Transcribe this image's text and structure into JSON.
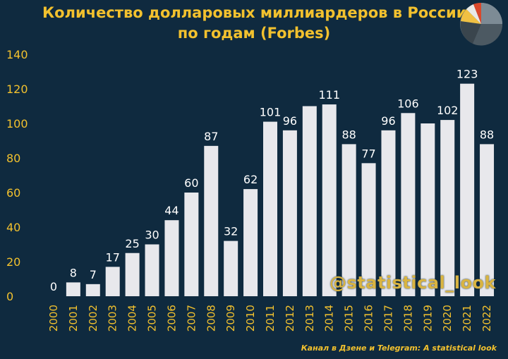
{
  "title_line1": "Количество долларовых миллиардеров в России",
  "title_line2": "по годам (Forbes)",
  "watermark": "@statistical_look",
  "footer": "Канал в Дзене и Telegram: A statistical look",
  "colors": {
    "background": "#0f2a3f",
    "bar": "#e8e8ec",
    "title": "#f2c12e",
    "axis_text": "#f2c12e",
    "label_text": "#ffffff"
  },
  "chart_data": {
    "type": "bar",
    "categories": [
      "2000",
      "2001",
      "2002",
      "2003",
      "2004",
      "2005",
      "2006",
      "2007",
      "2008",
      "2009",
      "2010",
      "2011",
      "2012",
      "2013",
      "2014",
      "2015",
      "2016",
      "2017",
      "2018",
      "2019",
      "2020",
      "2021",
      "2022"
    ],
    "values": [
      0,
      8,
      7,
      17,
      25,
      30,
      44,
      60,
      87,
      32,
      62,
      101,
      96,
      110,
      111,
      88,
      77,
      96,
      106,
      100,
      102,
      123,
      88
    ],
    "data_labels": [
      "0",
      "8",
      "7",
      "17",
      "25",
      "30",
      "44",
      "60",
      "87",
      "32",
      "62",
      "101",
      "96",
      "",
      "111",
      "88",
      "77",
      "96",
      "106",
      "",
      "102",
      "123",
      "88"
    ],
    "ylim": [
      0,
      140
    ],
    "yticks": [
      0,
      20,
      40,
      60,
      80,
      100,
      120,
      140
    ],
    "grid": false
  }
}
